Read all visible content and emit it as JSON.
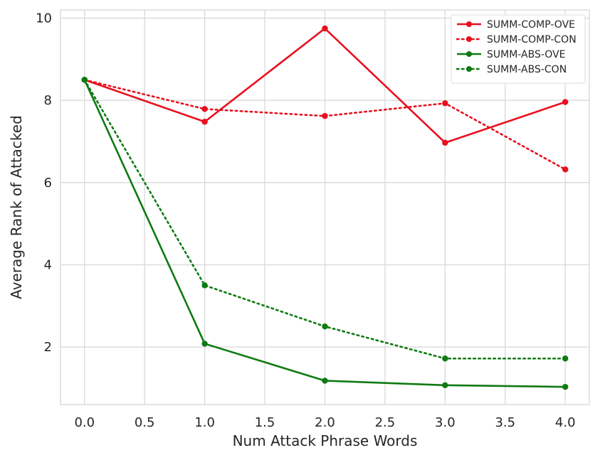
{
  "chart_data": {
    "type": "line",
    "title": "",
    "xlabel": "Num Attack Phrase Words",
    "ylabel": "Average Rank of Attacked",
    "xlim": [
      -0.2,
      4.2
    ],
    "ylim": [
      0.6,
      10.2
    ],
    "xticks": [
      0.0,
      0.5,
      1.0,
      1.5,
      2.0,
      2.5,
      3.0,
      3.5,
      4.0
    ],
    "xtick_labels": [
      "0.0",
      "0.5",
      "1.0",
      "1.5",
      "2.0",
      "2.5",
      "3.0",
      "3.5",
      "4.0"
    ],
    "yticks": [
      2,
      4,
      6,
      8,
      10
    ],
    "ytick_labels": [
      "2",
      "4",
      "6",
      "8",
      "10"
    ],
    "grid": true,
    "legend_position": "top-right",
    "x": [
      0,
      1,
      2,
      3,
      4
    ],
    "series": [
      {
        "name": "SUMM-COMP-OVE",
        "values": [
          8.5,
          7.48,
          9.75,
          6.97,
          7.96
        ],
        "color": "#e8101e",
        "style": "solid"
      },
      {
        "name": "SUMM-COMP-CON",
        "values": [
          8.5,
          7.79,
          7.62,
          7.93,
          6.32
        ],
        "color": "#e8101e",
        "style": "dotted"
      },
      {
        "name": "SUMM-ABS-OVE",
        "values": [
          8.5,
          2.08,
          1.18,
          1.07,
          1.03
        ],
        "color": "#0f7a12",
        "style": "solid"
      },
      {
        "name": "SUMM-ABS-CON",
        "values": [
          8.5,
          3.5,
          2.5,
          1.72,
          1.72
        ],
        "color": "#0f7a12",
        "style": "dotted"
      }
    ]
  }
}
